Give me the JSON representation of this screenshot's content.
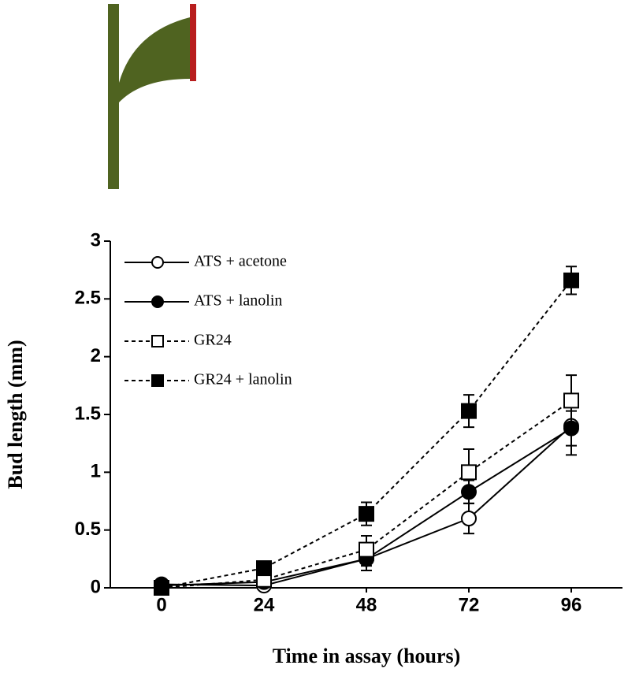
{
  "chart_data": {
    "type": "line",
    "x_label": "Time in assay (hours)",
    "y_label": "Bud length (mm)",
    "x": [
      0,
      24,
      48,
      72,
      96
    ],
    "xlim": [
      -12,
      108
    ],
    "xticks": [
      0,
      24,
      48,
      72,
      96
    ],
    "ylim": [
      0,
      3
    ],
    "yticks": [
      0,
      0.5,
      1,
      1.5,
      2,
      2.5,
      3
    ],
    "legend": "upper left",
    "series": [
      {
        "name": "ATS + acetone",
        "color": "#000000",
        "line_style": "solid",
        "marker": "circle",
        "marker_fill": "#ffffff",
        "values": [
          0.03,
          0.02,
          0.25,
          0.6,
          1.4
        ],
        "errors": [
          0.02,
          0.02,
          0.06,
          0.13,
          0.25
        ]
      },
      {
        "name": "ATS + lanolin",
        "color": "#000000",
        "line_style": "solid",
        "marker": "circle",
        "marker_fill": "#000000",
        "values": [
          0.02,
          0.05,
          0.25,
          0.83,
          1.38
        ],
        "errors": [
          0.02,
          0.02,
          0.1,
          0.1,
          0.15
        ]
      },
      {
        "name": "GR24",
        "color": "#000000",
        "line_style": "dashed",
        "marker": "square",
        "marker_fill": "#ffffff",
        "values": [
          0.0,
          0.07,
          0.33,
          1.0,
          1.62
        ],
        "errors": [
          0.02,
          0.03,
          0.12,
          0.2,
          0.22
        ]
      },
      {
        "name": "GR24 + lanolin",
        "color": "#000000",
        "line_style": "dashed",
        "marker": "square",
        "marker_fill": "#000000",
        "values": [
          0.0,
          0.17,
          0.64,
          1.53,
          2.66
        ],
        "errors": [
          0.02,
          0.04,
          0.1,
          0.14,
          0.12
        ]
      }
    ]
  }
}
